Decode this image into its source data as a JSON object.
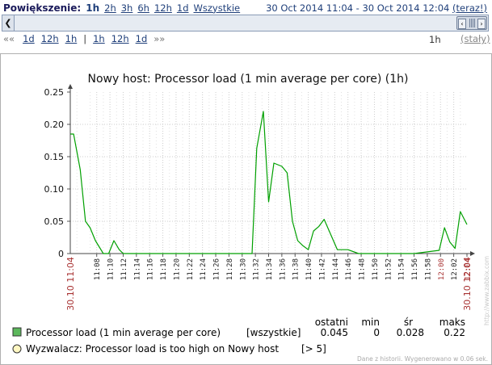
{
  "zoom": {
    "label": "Powiększenie:",
    "options": [
      "1h",
      "2h",
      "3h",
      "6h",
      "12h",
      "1d",
      "Wszystkie"
    ],
    "active": "1h"
  },
  "period": {
    "from": "30 Oct 2014 11:04",
    "dash": "-",
    "to": "30 Oct 2014 12:04",
    "now": "(teraz!)"
  },
  "nav": {
    "back_arrows": "««",
    "back": [
      "1d",
      "12h",
      "1h"
    ],
    "separator": "|",
    "forward": [
      "1h",
      "12h",
      "1d"
    ],
    "forward_arrows": "»»",
    "span": "1h",
    "fixed": "(stały)"
  },
  "chart_data": {
    "type": "line",
    "title": "Nowy host: Processor load (1 min average per core) (1h)",
    "ylim": [
      0,
      0.25
    ],
    "yticks": [
      "0.25",
      "0.20",
      "0.15",
      "0.10",
      "0.05",
      "0"
    ],
    "xstart_label": "30.10 11:04",
    "xend_label": "30.10 12:04",
    "x_range_minutes": [
      0,
      60
    ],
    "xticks": [
      "11:08",
      "11:10",
      "11:12",
      "11:14",
      "11:16",
      "11:18",
      "11:20",
      "11:22",
      "11:24",
      "11:26",
      "11:28",
      "11:30",
      "11:32",
      "11:34",
      "11:36",
      "11:38",
      "11:40",
      "11:42",
      "11:44",
      "11:46",
      "11:48",
      "11:50",
      "11:52",
      "11:54",
      "11:56",
      "11:58",
      "12:00",
      "12:02",
      "12:04"
    ],
    "highlight_ticks": [
      "12:00",
      "12:04"
    ],
    "grid": true,
    "series": [
      {
        "name": "Processor load (1 min average per core)",
        "color": "#00a000",
        "x": [
          0,
          0.5,
          1.5,
          2.3,
          3.0,
          3.8,
          5.0,
          5.8,
          6.6,
          7.4,
          8.0,
          27.5,
          28.2,
          29.2,
          30.0,
          30.8,
          32.0,
          32.8,
          33.6,
          34.4,
          35.2,
          36.0,
          36.8,
          37.6,
          38.4,
          40.4,
          41.2,
          42.0,
          43.6,
          44.4,
          52.0,
          55.8,
          56.6,
          57.4,
          58.2,
          59.0,
          60.0
        ],
        "values": [
          0.185,
          0.185,
          0.13,
          0.05,
          0.04,
          0.02,
          0,
          0,
          0.02,
          0.006,
          0,
          0,
          0.163,
          0.22,
          0.08,
          0.14,
          0.135,
          0.125,
          0.05,
          0.02,
          0.012,
          0.006,
          0.035,
          0.042,
          0.053,
          0.006,
          0.006,
          0.006,
          0,
          0,
          0,
          0.005,
          0.04,
          0.018,
          0.008,
          0.065,
          0.045
        ]
      }
    ]
  },
  "legend": {
    "headers": [
      "ostatni",
      "min",
      "śr",
      "maks"
    ],
    "rows": [
      {
        "label": "Processor load (1 min average per core)",
        "func": "[wszystkie]",
        "last": "0.045",
        "min": "0",
        "avg": "0.028",
        "max": "0.22",
        "color": "#5cb85c"
      }
    ],
    "trigger": {
      "label": "Wyzwalacz: Processor load is too high on Nowy host",
      "condition": "[> 5]",
      "color": "#fff7c2"
    }
  },
  "footer": "Dane z historii. Wygenerowano w 0.06 sek.",
  "watermark": "http://www.zabbix.com"
}
